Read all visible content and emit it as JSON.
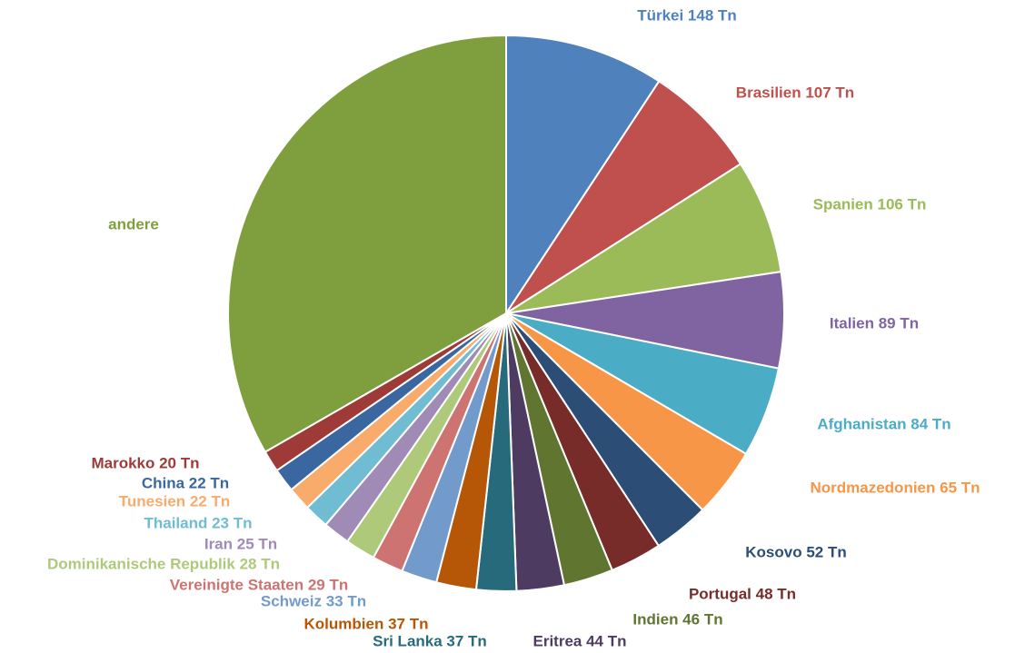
{
  "chart_data": {
    "type": "pie",
    "value_labels": [
      "Türkei 148 Tn",
      "Brasilien 107 Tn",
      "Spanien 106 Tn",
      "Italien 89 Tn",
      "Afghanistan 84 Tn",
      "Nordmazedonien 65 Tn",
      "Kosovo 52 Tn",
      "Portugal 48 Tn",
      "Indien 46 Tn",
      "Eritrea 44 Tn",
      "Sri Lanka 37 Tn",
      "Kolumbien 37 Tn",
      "Schweiz 33 Tn",
      "Vereinigte Staaten 29 Tn",
      "Dominikanische Republik 28 Tn",
      "Iran 25 Tn",
      "Thailand 23 Tn",
      "Tunesien 22 Tn",
      "China 22 Tn",
      "Marokko 20 Tn",
      "andere"
    ],
    "values": [
      148,
      107,
      106,
      89,
      84,
      65,
      52,
      48,
      46,
      44,
      37,
      37,
      33,
      29,
      28,
      25,
      23,
      22,
      22,
      20,
      532
    ],
    "colors": [
      "#4f81bd",
      "#c0504d",
      "#9bbb59",
      "#8064a2",
      "#4bacc6",
      "#f79646",
      "#2c4d75",
      "#772c2a",
      "#5f7530",
      "#4d3b62",
      "#276a7c",
      "#b65708",
      "#729aca",
      "#cd7371",
      "#afc97a",
      "#a08ab6",
      "#6fbcd3",
      "#f9ab6c",
      "#3a67a0",
      "#9e3a38",
      "#7f9f3e"
    ]
  }
}
